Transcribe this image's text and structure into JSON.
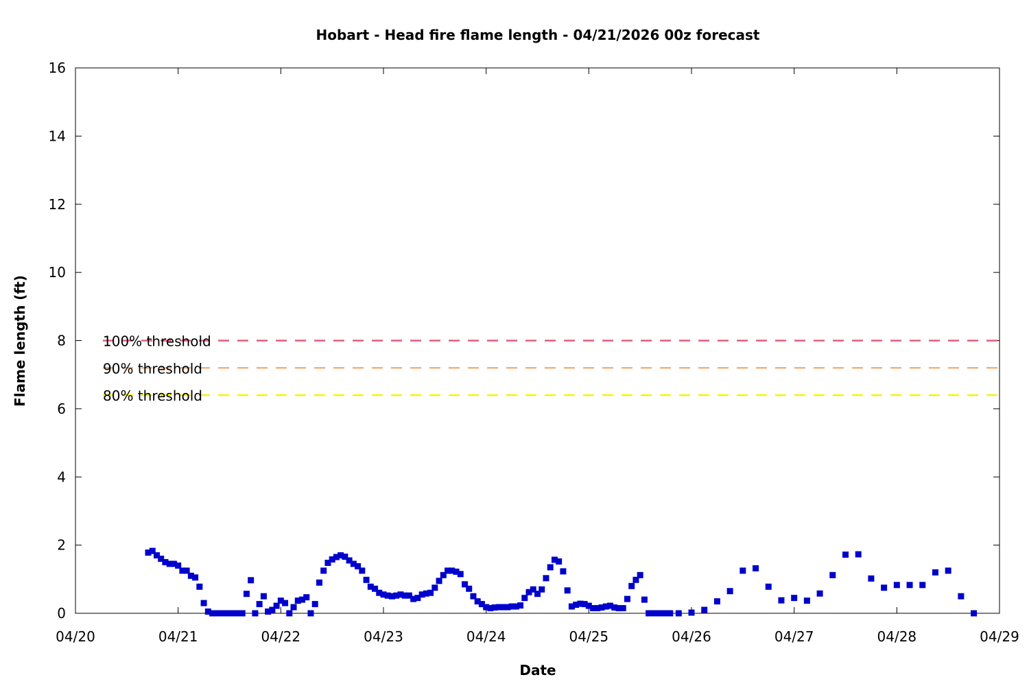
{
  "chart_data": {
    "type": "scatter",
    "title": "Hobart - Head fire flame length - 04/21/2026 00z forecast",
    "xlabel": "Date",
    "ylabel": "Flame length (ft)",
    "xlim": [
      "04/20 00:00",
      "04/29 00:00"
    ],
    "ylim": [
      0,
      16
    ],
    "x_ticks": [
      "04/20",
      "04/21",
      "04/22",
      "04/23",
      "04/24",
      "04/25",
      "04/26",
      "04/27",
      "04/28",
      "04/29"
    ],
    "y_ticks": [
      "0",
      "2",
      "4",
      "6",
      "8",
      "10",
      "12",
      "14",
      "16"
    ],
    "grid": false,
    "legend": "none",
    "thresholds": [
      {
        "name": "100% threshold",
        "value": 8.0,
        "color": "#db5f7b"
      },
      {
        "name": "90% threshold",
        "value": 7.2,
        "color": "#f2b17a"
      },
      {
        "name": "80% threshold",
        "value": 6.4,
        "color": "#f5f500"
      }
    ],
    "series": [
      {
        "marker_color": "#0000cc",
        "points": [
          [
            "04/20 17:00",
            1.78
          ],
          [
            "04/20 18:00",
            1.83
          ],
          [
            "04/20 19:00",
            1.7
          ],
          [
            "04/20 20:00",
            1.6
          ],
          [
            "04/20 21:00",
            1.5
          ],
          [
            "04/20 22:00",
            1.45
          ],
          [
            "04/20 23:00",
            1.45
          ],
          [
            "04/21 00:00",
            1.4
          ],
          [
            "04/21 01:00",
            1.25
          ],
          [
            "04/21 02:00",
            1.25
          ],
          [
            "04/21 03:00",
            1.1
          ],
          [
            "04/21 04:00",
            1.05
          ],
          [
            "04/21 05:00",
            0.78
          ],
          [
            "04/21 06:00",
            0.3
          ],
          [
            "04/21 07:00",
            0.05
          ],
          [
            "04/21 08:00",
            0.0
          ],
          [
            "04/21 09:00",
            0.0
          ],
          [
            "04/21 10:00",
            0.0
          ],
          [
            "04/21 11:00",
            0.0
          ],
          [
            "04/21 12:00",
            0.0
          ],
          [
            "04/21 13:00",
            0.0
          ],
          [
            "04/21 14:00",
            0.0
          ],
          [
            "04/21 15:00",
            0.0
          ],
          [
            "04/21 16:00",
            0.57
          ],
          [
            "04/21 17:00",
            0.97
          ],
          [
            "04/21 18:00",
            0.0
          ],
          [
            "04/21 19:00",
            0.27
          ],
          [
            "04/21 20:00",
            0.5
          ],
          [
            "04/21 21:00",
            0.05
          ],
          [
            "04/21 22:00",
            0.1
          ],
          [
            "04/21 23:00",
            0.22
          ],
          [
            "04/22 00:00",
            0.37
          ],
          [
            "04/22 01:00",
            0.3
          ],
          [
            "04/22 02:00",
            0.0
          ],
          [
            "04/22 03:00",
            0.18
          ],
          [
            "04/22 04:00",
            0.37
          ],
          [
            "04/22 05:00",
            0.4
          ],
          [
            "04/22 06:00",
            0.47
          ],
          [
            "04/22 07:00",
            0.0
          ],
          [
            "04/22 08:00",
            0.27
          ],
          [
            "04/22 09:00",
            0.9
          ],
          [
            "04/22 10:00",
            1.25
          ],
          [
            "04/22 11:00",
            1.48
          ],
          [
            "04/22 12:00",
            1.58
          ],
          [
            "04/22 13:00",
            1.65
          ],
          [
            "04/22 14:00",
            1.7
          ],
          [
            "04/22 15:00",
            1.66
          ],
          [
            "04/22 16:00",
            1.55
          ],
          [
            "04/22 17:00",
            1.45
          ],
          [
            "04/22 18:00",
            1.38
          ],
          [
            "04/22 19:00",
            1.25
          ],
          [
            "04/22 20:00",
            0.98
          ],
          [
            "04/22 21:00",
            0.78
          ],
          [
            "04/22 22:00",
            0.72
          ],
          [
            "04/22 23:00",
            0.6
          ],
          [
            "04/23 00:00",
            0.55
          ],
          [
            "04/23 01:00",
            0.52
          ],
          [
            "04/23 02:00",
            0.5
          ],
          [
            "04/23 03:00",
            0.52
          ],
          [
            "04/23 04:00",
            0.55
          ],
          [
            "04/23 05:00",
            0.52
          ],
          [
            "04/23 06:00",
            0.52
          ],
          [
            "04/23 07:00",
            0.42
          ],
          [
            "04/23 08:00",
            0.45
          ],
          [
            "04/23 09:00",
            0.55
          ],
          [
            "04/23 10:00",
            0.58
          ],
          [
            "04/23 11:00",
            0.6
          ],
          [
            "04/23 12:00",
            0.75
          ],
          [
            "04/23 13:00",
            0.95
          ],
          [
            "04/23 14:00",
            1.12
          ],
          [
            "04/23 15:00",
            1.25
          ],
          [
            "04/23 16:00",
            1.25
          ],
          [
            "04/23 17:00",
            1.22
          ],
          [
            "04/23 18:00",
            1.15
          ],
          [
            "04/23 19:00",
            0.85
          ],
          [
            "04/23 20:00",
            0.72
          ],
          [
            "04/23 21:00",
            0.5
          ],
          [
            "04/23 22:00",
            0.35
          ],
          [
            "04/23 23:00",
            0.27
          ],
          [
            "04/24 00:00",
            0.18
          ],
          [
            "04/24 01:00",
            0.15
          ],
          [
            "04/24 02:00",
            0.17
          ],
          [
            "04/24 03:00",
            0.18
          ],
          [
            "04/24 04:00",
            0.18
          ],
          [
            "04/24 05:00",
            0.18
          ],
          [
            "04/24 06:00",
            0.2
          ],
          [
            "04/24 07:00",
            0.2
          ],
          [
            "04/24 08:00",
            0.23
          ],
          [
            "04/24 09:00",
            0.45
          ],
          [
            "04/24 10:00",
            0.62
          ],
          [
            "04/24 11:00",
            0.7
          ],
          [
            "04/24 12:00",
            0.57
          ],
          [
            "04/24 13:00",
            0.7
          ],
          [
            "04/24 14:00",
            1.03
          ],
          [
            "04/24 15:00",
            1.35
          ],
          [
            "04/24 16:00",
            1.57
          ],
          [
            "04/24 17:00",
            1.52
          ],
          [
            "04/24 18:00",
            1.23
          ],
          [
            "04/24 19:00",
            0.67
          ],
          [
            "04/24 20:00",
            0.2
          ],
          [
            "04/24 21:00",
            0.25
          ],
          [
            "04/24 22:00",
            0.28
          ],
          [
            "04/24 23:00",
            0.27
          ],
          [
            "04/25 00:00",
            0.22
          ],
          [
            "04/25 01:00",
            0.15
          ],
          [
            "04/25 02:00",
            0.15
          ],
          [
            "04/25 03:00",
            0.17
          ],
          [
            "04/25 04:00",
            0.2
          ],
          [
            "04/25 05:00",
            0.22
          ],
          [
            "04/25 06:00",
            0.17
          ],
          [
            "04/25 07:00",
            0.15
          ],
          [
            "04/25 08:00",
            0.15
          ],
          [
            "04/25 09:00",
            0.42
          ],
          [
            "04/25 10:00",
            0.8
          ],
          [
            "04/25 11:00",
            0.98
          ],
          [
            "04/25 12:00",
            1.12
          ],
          [
            "04/25 13:00",
            0.4
          ],
          [
            "04/25 14:00",
            0.0
          ],
          [
            "04/25 15:00",
            0.0
          ],
          [
            "04/25 16:00",
            0.0
          ],
          [
            "04/25 17:00",
            0.0
          ],
          [
            "04/25 18:00",
            0.0
          ],
          [
            "04/25 19:00",
            0.0
          ],
          [
            "04/25 21:00",
            0.0
          ],
          [
            "04/26 00:00",
            0.02
          ],
          [
            "04/26 03:00",
            0.1
          ],
          [
            "04/26 06:00",
            0.35
          ],
          [
            "04/26 09:00",
            0.65
          ],
          [
            "04/26 12:00",
            1.25
          ],
          [
            "04/26 15:00",
            1.32
          ],
          [
            "04/26 18:00",
            0.78
          ],
          [
            "04/26 21:00",
            0.38
          ],
          [
            "04/27 00:00",
            0.45
          ],
          [
            "04/27 03:00",
            0.37
          ],
          [
            "04/27 06:00",
            0.58
          ],
          [
            "04/27 09:00",
            1.12
          ],
          [
            "04/27 12:00",
            1.72
          ],
          [
            "04/27 15:00",
            1.73
          ],
          [
            "04/27 18:00",
            1.02
          ],
          [
            "04/27 21:00",
            0.75
          ],
          [
            "04/28 00:00",
            0.83
          ],
          [
            "04/28 03:00",
            0.83
          ],
          [
            "04/28 06:00",
            0.83
          ],
          [
            "04/28 09:00",
            1.2
          ],
          [
            "04/28 12:00",
            1.25
          ],
          [
            "04/28 15:00",
            0.5
          ],
          [
            "04/28 18:00",
            0.0
          ]
        ]
      }
    ]
  }
}
